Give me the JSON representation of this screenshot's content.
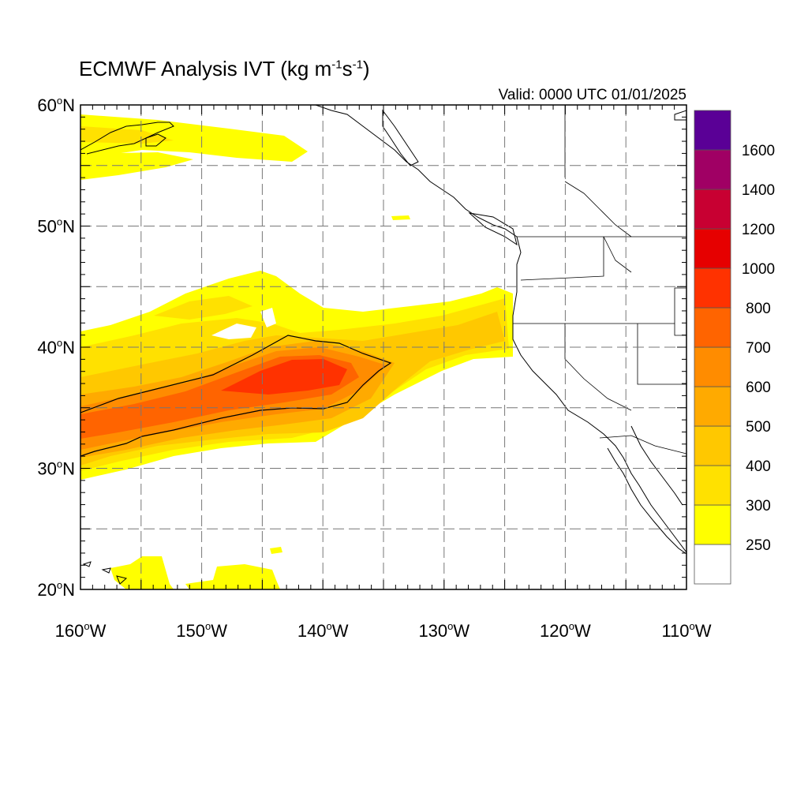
{
  "title": {
    "main": "ECMWF Analysis IVT (kg m",
    "exp1": "-1",
    "mid": "s",
    "exp2": "-1",
    "end": ")"
  },
  "valid_time": "Valid: 0000 UTC 01/01/2025",
  "axes": {
    "lon_min": -160,
    "lon_max": -110,
    "lat_min": 20,
    "lat_max": 60,
    "lon_ticks": [
      {
        "deg": "160",
        "hem": "W"
      },
      {
        "deg": "150",
        "hem": "W"
      },
      {
        "deg": "140",
        "hem": "W"
      },
      {
        "deg": "130",
        "hem": "W"
      },
      {
        "deg": "120",
        "hem": "W"
      },
      {
        "deg": "110",
        "hem": "W"
      }
    ],
    "lat_ticks": [
      {
        "deg": "60",
        "hem": "N"
      },
      {
        "deg": "50",
        "hem": "N"
      },
      {
        "deg": "40",
        "hem": "N"
      },
      {
        "deg": "30",
        "hem": "N"
      },
      {
        "deg": "20",
        "hem": "N"
      }
    ],
    "degree_symbol": "o"
  },
  "colorbar": {
    "labels": [
      "250",
      "300",
      "400",
      "500",
      "600",
      "700",
      "800",
      "1000",
      "1200",
      "1400",
      "1600"
    ],
    "colors": [
      "#ffffff",
      "#ffff00",
      "#ffe100",
      "#ffc800",
      "#ffaa00",
      "#ff8c00",
      "#ff6400",
      "#ff3200",
      "#e60000",
      "#c80032",
      "#a00064",
      "#5a0096"
    ]
  }
}
